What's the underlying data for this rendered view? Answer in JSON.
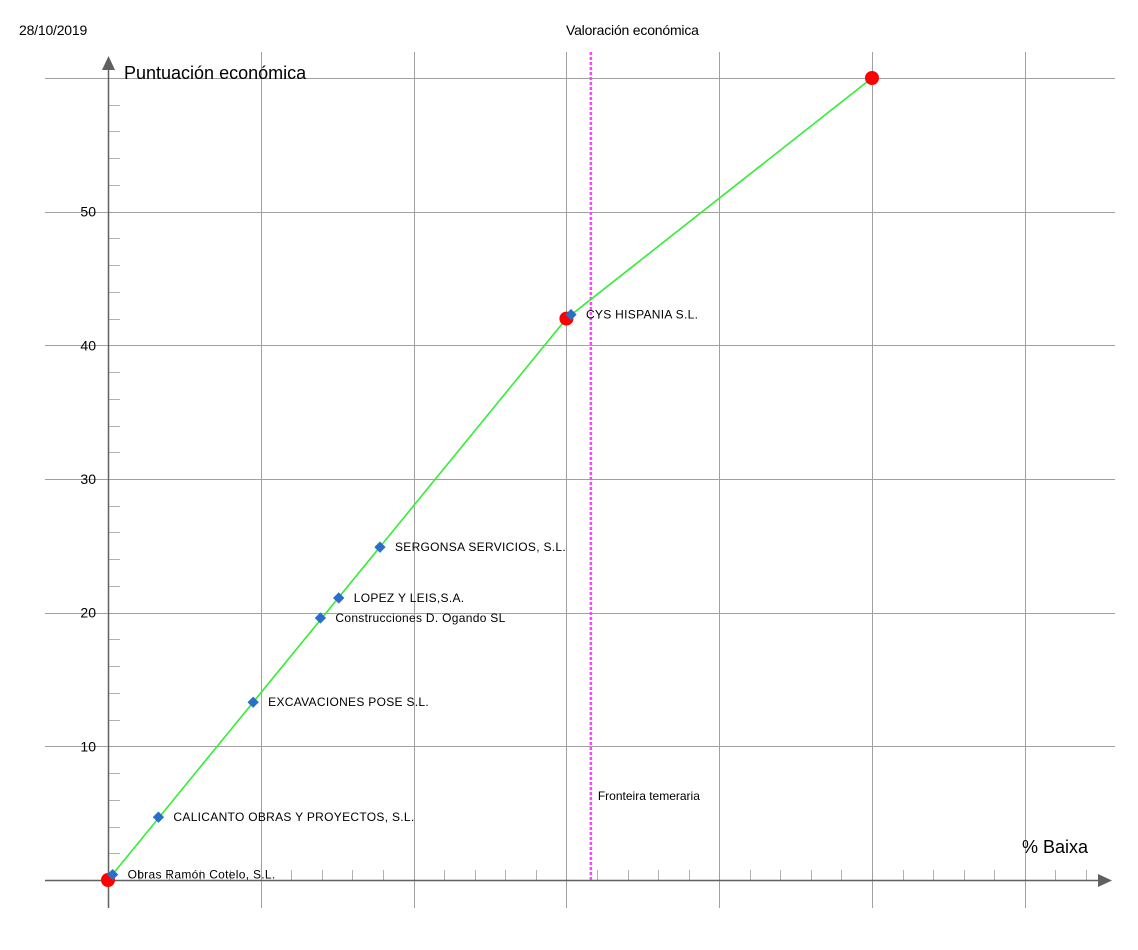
{
  "header": {
    "date": "28/10/2019",
    "title": "Valoración económica"
  },
  "colors": {
    "grid": "#a0a0a0",
    "axis": "#606060",
    "curve": "#33ee33",
    "curve_points": "#ff0000",
    "bids": "#2a6ec8",
    "threshold": "#ff44ff"
  },
  "chart_data": {
    "type": "scatter",
    "title": "Valoración económica",
    "xlabel": "% Baixa",
    "ylabel": "Puntuación económica",
    "y_ticks": [
      10,
      20,
      30,
      40,
      50
    ],
    "xlim": [
      0,
      50
    ],
    "ylim": [
      0,
      60
    ],
    "grid": true,
    "scoring_curve": {
      "x": [
        0,
        30,
        50
      ],
      "y": [
        0,
        42,
        60
      ]
    },
    "threshold": {
      "label": "Fronteira temeraria",
      "x": 31.6
    },
    "bids": [
      {
        "label": "Obras Ramón Cotelo, S.L.",
        "x": 0.3,
        "y": 0.4
      },
      {
        "label": "CALICANTO OBRAS Y PROYECTOS, S.L.",
        "x": 3.3,
        "y": 4.7
      },
      {
        "label": "EXCAVACIONES POSE S.L.",
        "x": 9.5,
        "y": 13.3
      },
      {
        "label": "Construcciones D. Ogando SL",
        "x": 13.9,
        "y": 19.6
      },
      {
        "label": "LOPEZ Y LEIS,S.A.",
        "x": 15.1,
        "y": 21.1
      },
      {
        "label": "SERGONSA SERVICIOS, S.L.",
        "x": 17.8,
        "y": 24.9
      },
      {
        "label": "CYS HISPANIA S.L.",
        "x": 30.3,
        "y": 42.3
      }
    ]
  }
}
